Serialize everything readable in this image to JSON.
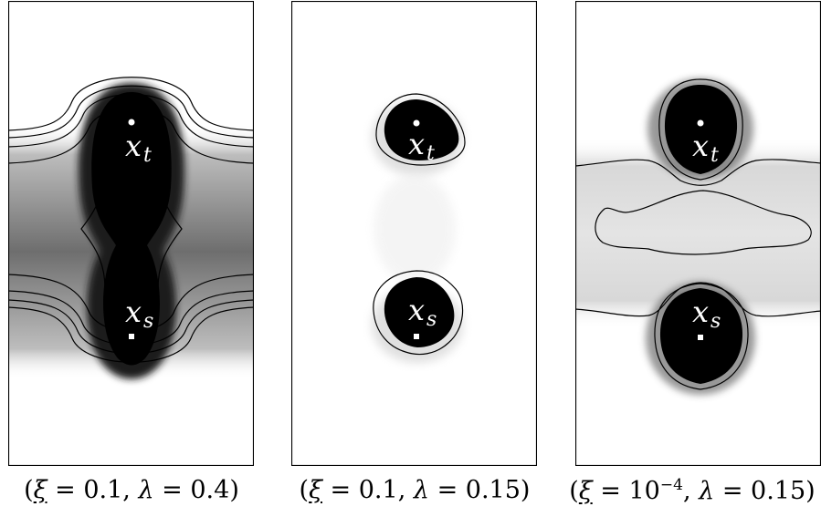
{
  "colors": {
    "background": "#ffffff",
    "field_dark": "#000000",
    "contour": "#000000",
    "marker": "#ffffff",
    "label": "#ffffff",
    "border": "#000000"
  },
  "panels": [
    {
      "point_labels": {
        "target_base": "x",
        "target_sub": "t",
        "source_base": "x",
        "source_sub": "s"
      },
      "target_marker": "dot-marker",
      "source_marker": "square-marker",
      "caption": {
        "xi_symbol": "ξ",
        "xi_value": " = 0.1, ",
        "lambda_symbol": "λ",
        "lambda_value": " = 0.4"
      }
    },
    {
      "point_labels": {
        "target_base": "x",
        "target_sub": "t",
        "source_base": "x",
        "source_sub": "s"
      },
      "target_marker": "dot-marker",
      "source_marker": "square-marker",
      "caption": {
        "xi_symbol": "ξ",
        "xi_value": " = 0.1, ",
        "lambda_symbol": "λ",
        "lambda_value": " = 0.15"
      }
    },
    {
      "point_labels": {
        "target_base": "x",
        "target_sub": "t",
        "source_base": "x",
        "source_sub": "s"
      },
      "target_marker": "dot-marker",
      "source_marker": "square-marker",
      "caption": {
        "xi_symbol": "ξ",
        "xi_value": " = 10",
        "xi_exponent": "−4",
        "xi_suffix": ", ",
        "lambda_symbol": "λ",
        "lambda_value": " = 0.15"
      }
    }
  ]
}
